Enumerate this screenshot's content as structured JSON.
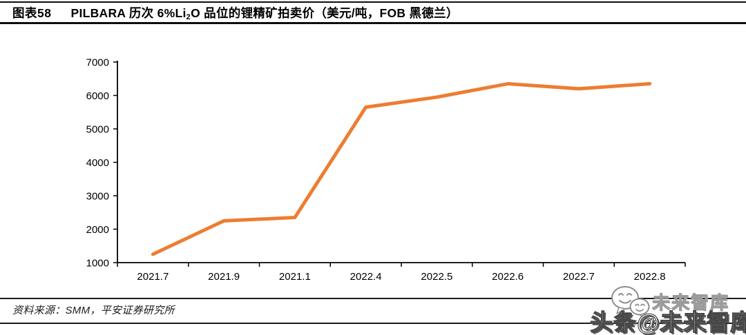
{
  "header": {
    "figure_label": "图表58",
    "title_pre": "PILBARA 历次 6%Li",
    "title_sub": "2",
    "title_post": "O 品位的锂精矿拍卖价（美元/吨，FOB 黑德兰）"
  },
  "chart_data": {
    "type": "line",
    "title": "PILBARA 历次 6%Li2O 品位的锂精矿拍卖价（美元/吨，FOB 黑德兰）",
    "categories": [
      "2021.7",
      "2021.9",
      "2021.1",
      "2022.4",
      "2022.5",
      "2022.6",
      "2022.7",
      "2022.8"
    ],
    "values": [
      1250,
      2250,
      2350,
      5650,
      5950,
      6350,
      6200,
      6350
    ],
    "xlabel": "",
    "ylabel": "",
    "ylim": [
      1000,
      7000
    ],
    "yticks": [
      1000,
      2000,
      3000,
      4000,
      5000,
      6000,
      7000
    ],
    "grid": false,
    "legend": "none",
    "line_color": "#ED7D31",
    "axis_color": "#000000"
  },
  "footer": {
    "source": "资料来源：SMM，平安证券研究所"
  },
  "watermark": {
    "small_text": "未来智库",
    "large_text": "头条@未来智库",
    "icon": "chat-bubbles-icon"
  }
}
